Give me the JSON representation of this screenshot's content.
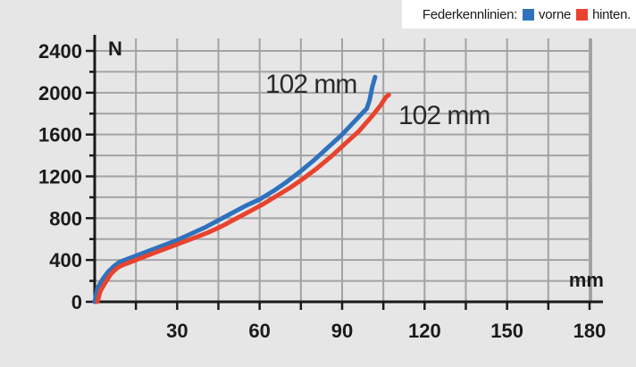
{
  "chart_data": {
    "type": "line",
    "title": "",
    "xlabel": "mm",
    "ylabel": "N",
    "xlim": [
      0,
      180
    ],
    "ylim": [
      0,
      2400
    ],
    "xticks": [
      30,
      60,
      90,
      120,
      150,
      180
    ],
    "yticks": [
      0,
      400,
      800,
      1200,
      1600,
      2000,
      2400
    ],
    "grid": true,
    "legend": {
      "title": "Federkennlinien:",
      "placement": "top-right",
      "entries": [
        {
          "name": "vorne",
          "color": "#2e72be"
        },
        {
          "name": "hinten.",
          "color": "#e8432e"
        }
      ]
    },
    "series": [
      {
        "name": "vorne",
        "color": "#2e72be",
        "annotation": "102 mm",
        "x": [
          0,
          1,
          3,
          5,
          7,
          9,
          12,
          16,
          20,
          25,
          30,
          35,
          40,
          45,
          50,
          55,
          60,
          65,
          70,
          75,
          80,
          85,
          90,
          95,
          99,
          100,
          101,
          102
        ],
        "y": [
          0,
          130,
          220,
          290,
          340,
          380,
          410,
          450,
          490,
          540,
          590,
          650,
          710,
          780,
          850,
          920,
          980,
          1060,
          1150,
          1250,
          1360,
          1480,
          1600,
          1740,
          1850,
          1930,
          2060,
          2150
        ]
      },
      {
        "name": "hinten.",
        "color": "#e8432e",
        "annotation": "102 mm",
        "x": [
          1,
          2,
          4,
          6,
          8,
          10,
          13,
          17,
          21,
          26,
          31,
          36,
          41,
          46,
          51,
          56,
          61,
          66,
          71,
          76,
          81,
          86,
          91,
          96,
          101,
          104,
          106,
          107
        ],
        "y": [
          0,
          100,
          190,
          270,
          320,
          350,
          380,
          420,
          460,
          510,
          560,
          610,
          660,
          720,
          790,
          860,
          930,
          1010,
          1090,
          1180,
          1280,
          1390,
          1510,
          1630,
          1780,
          1880,
          1960,
          1980
        ]
      }
    ]
  }
}
